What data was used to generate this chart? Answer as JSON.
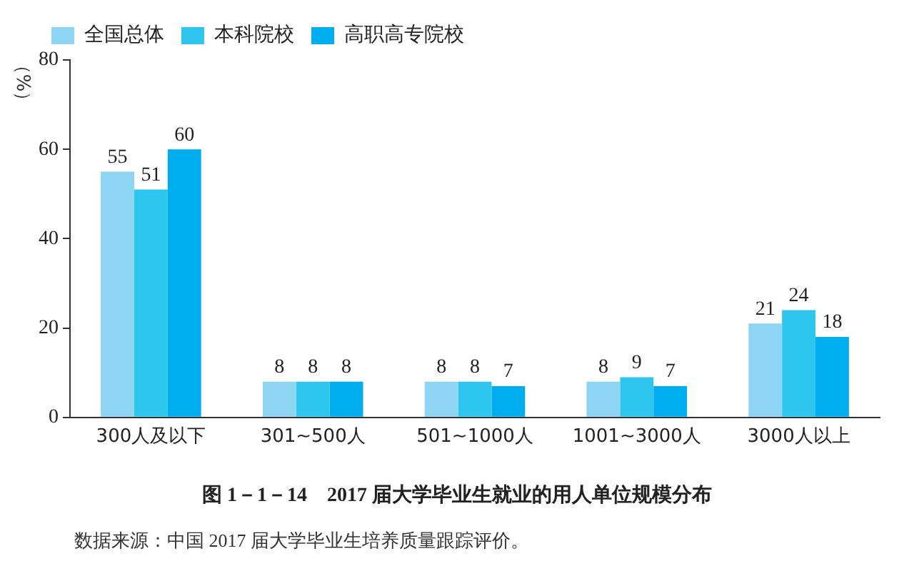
{
  "chart_data": {
    "type": "bar",
    "title": "图 1－1－14　2017 届大学毕业生就业的用人单位规模分布",
    "ylabel": "（%）",
    "categories": [
      "300人及以下",
      "301~500人",
      "501~1000人",
      "1001~3000人",
      "3000人以上"
    ],
    "series": [
      {
        "name": "全国总体",
        "color": "#8dd5f2",
        "values": [
          55,
          8,
          8,
          8,
          21
        ]
      },
      {
        "name": "本科院校",
        "color": "#2ec5ef",
        "values": [
          51,
          8,
          8,
          9,
          24
        ]
      },
      {
        "name": "高职高专院校",
        "color": "#00aeef",
        "values": [
          60,
          8,
          7,
          7,
          18
        ]
      }
    ],
    "ylim": [
      0,
      80
    ],
    "yticks": [
      0,
      20,
      40,
      60,
      80
    ],
    "grid": false,
    "legend": "top left",
    "data_labels": true,
    "annotations": [
      "数据来源：中国 2017 届大学毕业生培养质量跟踪评价。"
    ]
  }
}
